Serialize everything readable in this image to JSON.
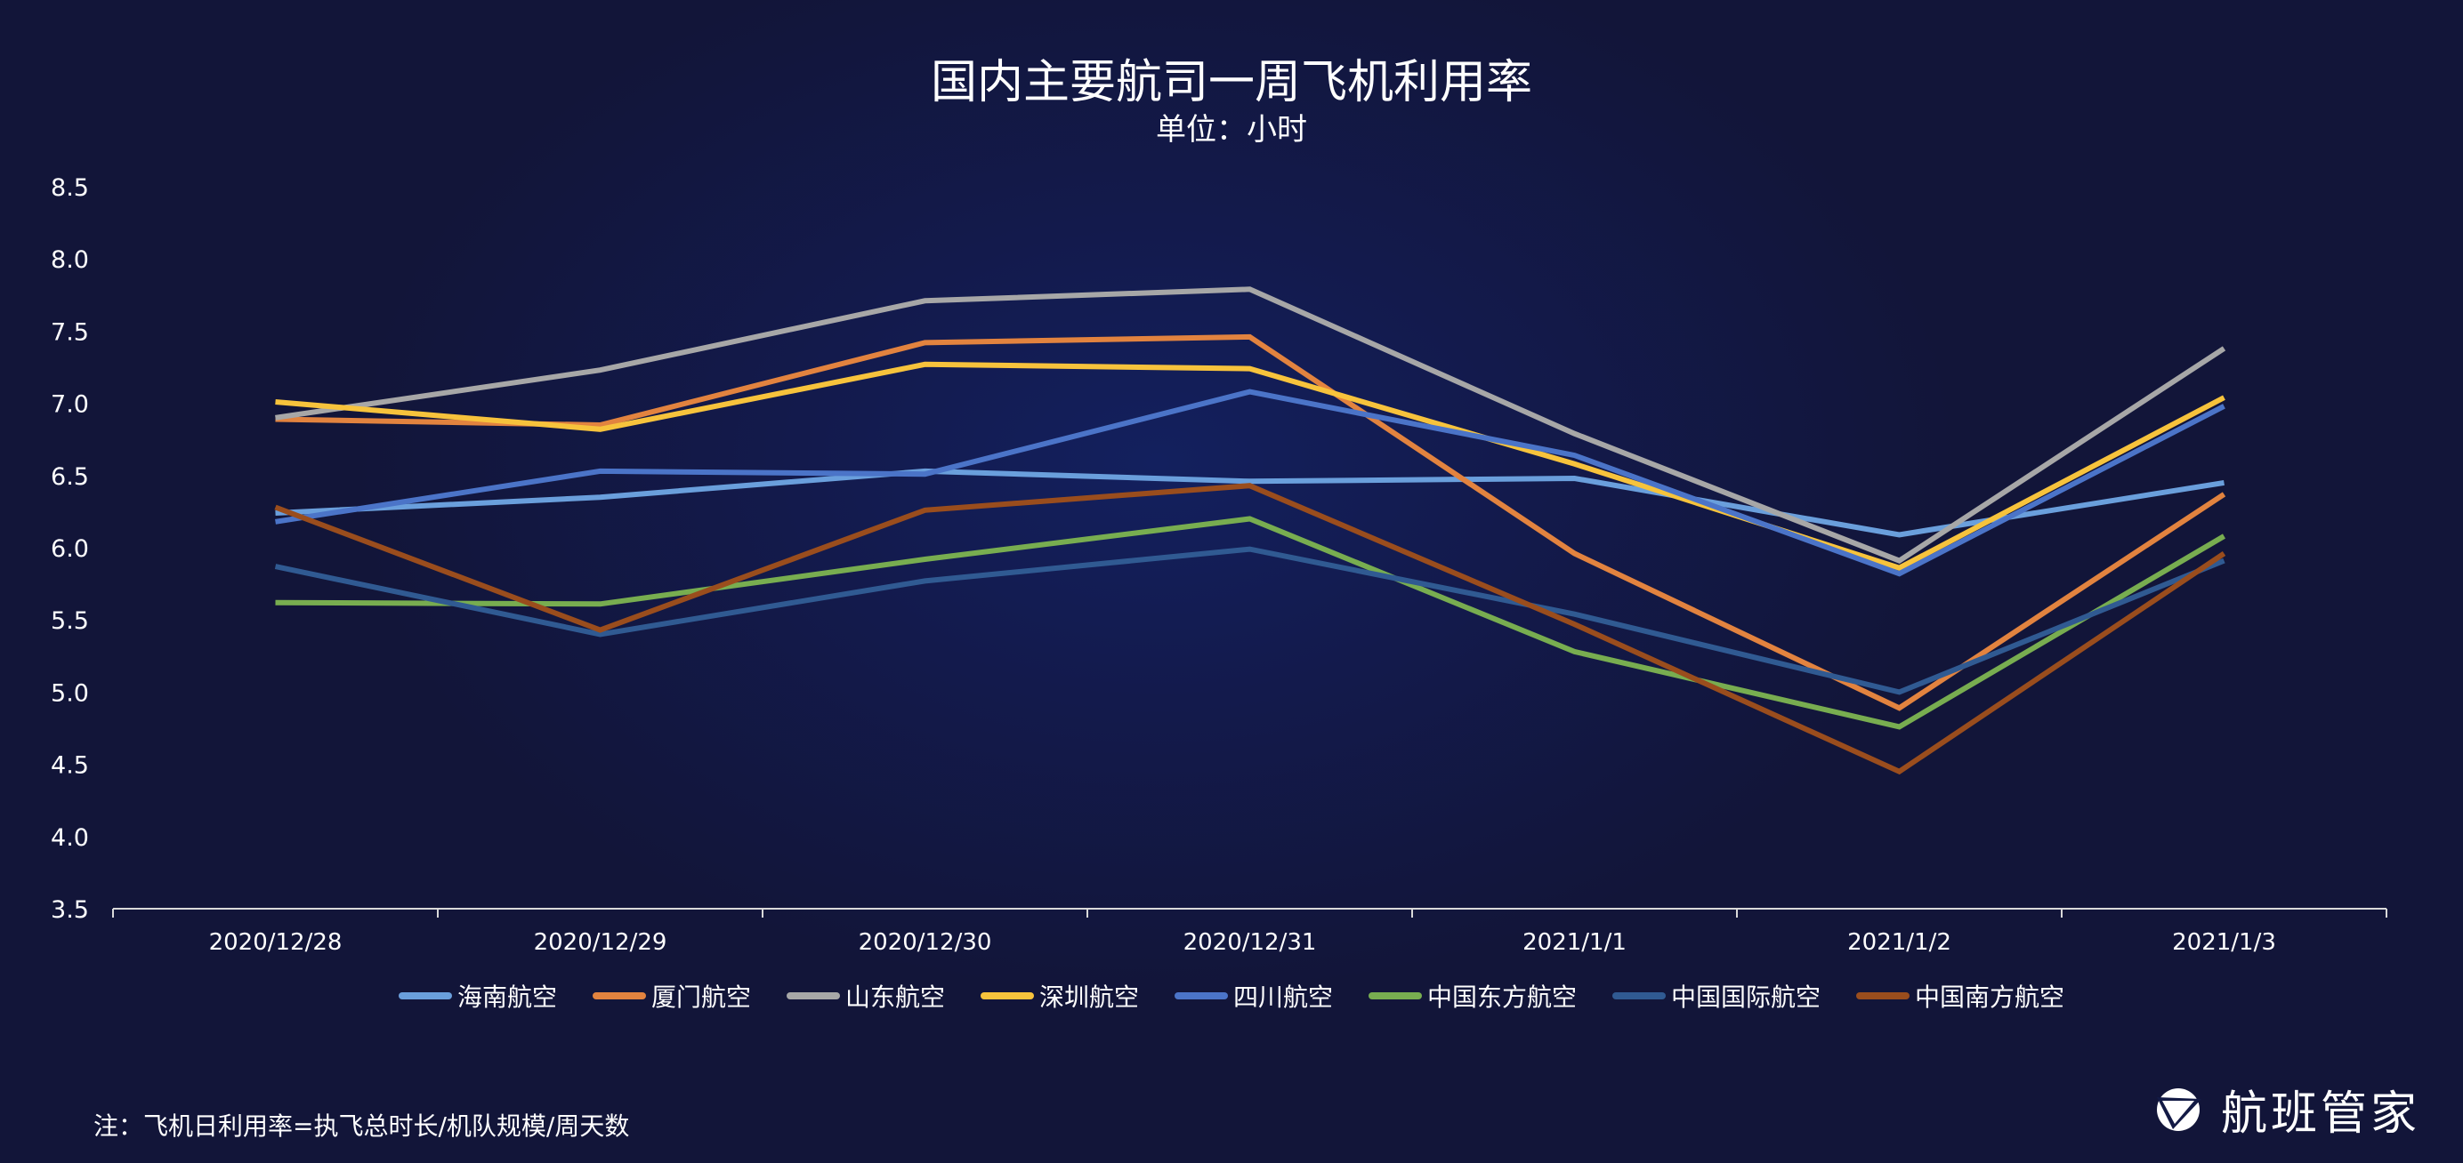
{
  "chart_data": {
    "type": "line",
    "title": "国内主要航司一周飞机利用率",
    "subtitle": "单位：小时",
    "xlabel": "",
    "ylabel": "",
    "ylim": [
      3.5,
      8.5
    ],
    "yticks": [
      "3.5",
      "4.0",
      "4.5",
      "5.0",
      "5.5",
      "6.0",
      "6.5",
      "7.0",
      "7.5",
      "8.0",
      "8.5"
    ],
    "categories": [
      "2020/12/28",
      "2020/12/29",
      "2020/12/30",
      "2020/12/31",
      "2021/1/1",
      "2021/1/2",
      "2021/1/3"
    ],
    "legend_position": "bottom",
    "grid": false,
    "series": [
      {
        "name": "海南航空",
        "color": "#6a9fdc",
        "values": [
          6.24,
          6.35,
          6.53,
          6.46,
          6.48,
          6.09,
          6.45
        ]
      },
      {
        "name": "厦门航空",
        "color": "#e2833f",
        "values": [
          6.89,
          6.85,
          7.42,
          7.46,
          5.96,
          4.89,
          6.37
        ]
      },
      {
        "name": "山东航空",
        "color": "#a7a7a7",
        "values": [
          6.9,
          7.23,
          7.71,
          7.79,
          6.79,
          5.91,
          7.38
        ]
      },
      {
        "name": "深圳航空",
        "color": "#f7c33c",
        "values": [
          7.01,
          6.82,
          7.27,
          7.24,
          6.58,
          5.86,
          7.04
        ]
      },
      {
        "name": "四川航空",
        "color": "#4b74c8",
        "values": [
          6.18,
          6.53,
          6.51,
          7.08,
          6.64,
          5.82,
          6.98
        ]
      },
      {
        "name": "中国东方航空",
        "color": "#78ad50",
        "values": [
          5.62,
          5.61,
          5.92,
          6.2,
          5.28,
          4.76,
          6.08
        ]
      },
      {
        "name": "中国国际航空",
        "color": "#305a92",
        "values": [
          5.87,
          5.4,
          5.77,
          5.99,
          5.54,
          5.0,
          5.91
        ]
      },
      {
        "name": "中国南方航空",
        "color": "#9a4d1d",
        "values": [
          6.28,
          5.43,
          6.26,
          6.43,
          5.47,
          4.45,
          5.96
        ]
      }
    ]
  },
  "footer": {
    "note": "注：飞机日利用率=执飞总时长/机队规模/周天数",
    "logo_text": "航班管家"
  }
}
